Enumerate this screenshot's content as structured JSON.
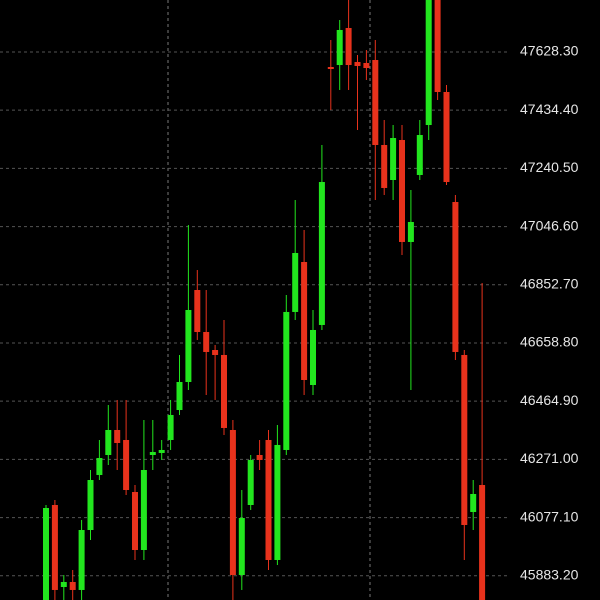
{
  "chart_data": {
    "type": "candlestick",
    "open": [
      45802.5,
      46119.0,
      45845.8,
      45862.5,
      45835.9,
      46035.7,
      46219.0,
      46285.6,
      46368.9,
      46335.6,
      46162.3,
      45969.1,
      46285.6,
      46292.3,
      46335.6,
      46435.5,
      46528.8,
      46835.3,
      46695.4,
      46635.4,
      46618.8,
      46368.9,
      45885.8,
      46119.0,
      46285.6,
      46335.6,
      45935.8,
      46302.3,
      46762.1,
      46928.6,
      46518.8,
      46718.8,
      47578.3,
      47584.9,
      47708.2,
      47594.9,
      47591.6,
      47601.6,
      47318.4,
      47201.8,
      47335.1,
      46995.3,
      47218.5,
      47385.0,
      47834.8,
      47495.0,
      47128.5,
      46618.8,
      46095.7,
      46185.6
    ],
    "high": [
      46119.0,
      46135.7,
      45885.8,
      45902.5,
      46069.1,
      46235.6,
      46335.6,
      46452.2,
      46468.9,
      46468.9,
      46185.6,
      46402.2,
      46402.2,
      46335.6,
      46468.9,
      46618.8,
      47051.9,
      46901.9,
      46835.3,
      46652.1,
      46735.4,
      46402.2,
      46169.0,
      46285.6,
      46335.6,
      46368.9,
      46385.6,
      46818.7,
      47135.2,
      47035.2,
      46768.7,
      47318.4,
      47668.2,
      47734.9,
      47801.5,
      47618.3,
      47634.9,
      47668.2,
      47401.7,
      47385.0,
      47385.0,
      47168.5,
      47401.7,
      47868.1,
      47868.1,
      47518.3,
      47151.8,
      46635.4,
      46202.3,
      46858.6
    ],
    "low": [
      45802.5,
      45802.5,
      45802.5,
      45802.5,
      45802.5,
      46002.4,
      46202.3,
      46252.3,
      46235.6,
      46152.3,
      45935.8,
      45935.8,
      46235.6,
      46269.0,
      46302.3,
      46418.9,
      46502.2,
      46668.8,
      46485.5,
      46468.9,
      46352.3,
      45802.5,
      45835.9,
      46102.4,
      46235.6,
      45902.5,
      45919.1,
      46285.6,
      46735.4,
      46485.5,
      46485.5,
      46702.1,
      47435.0,
      47501.7,
      47501.7,
      47368.4,
      47535.0,
      47135.2,
      47151.8,
      47135.2,
      46951.9,
      46502.2,
      47201.8,
      47335.1,
      47468.3,
      47185.1,
      46602.1,
      45935.8,
      46035.7,
      45735.9
    ],
    "close": [
      46109.0,
      45835.9,
      45862.5,
      45835.9,
      46035.7,
      46202.3,
      46275.6,
      46368.9,
      46325.6,
      46169.0,
      45969.1,
      46235.6,
      46295.6,
      46302.3,
      46418.9,
      46528.8,
      46768.7,
      46695.4,
      46628.8,
      46618.8,
      46375.6,
      45885.8,
      46075.7,
      46269.0,
      46269.0,
      45935.8,
      46319.0,
      46762.1,
      46958.6,
      46535.5,
      46702.1,
      47195.1,
      47571.6,
      47701.6,
      47584.9,
      47581.6,
      47574.9,
      47318.4,
      47175.2,
      47341.7,
      46995.3,
      47061.9,
      47351.7,
      47834.8,
      47495.0,
      47195.1,
      46628.8,
      46052.4,
      46155.7,
      45769.2
    ],
    "up_color": "#22e61e",
    "down_color": "#e8321c",
    "ylim": [
      45802.5,
      47801.5
    ],
    "yticks": [
      {
        "value": 45883.2,
        "label": "45883.20"
      },
      {
        "value": 46077.1,
        "label": "46077.10"
      },
      {
        "value": 46271.0,
        "label": "46271.00"
      },
      {
        "value": 46464.9,
        "label": "46464.90"
      },
      {
        "value": 46658.8,
        "label": "46658.80"
      },
      {
        "value": 46852.7,
        "label": "46852.70"
      },
      {
        "value": 47046.6,
        "label": "47046.60"
      },
      {
        "value": 47240.5,
        "label": "47240.50"
      },
      {
        "value": 47434.4,
        "label": "47434.40"
      },
      {
        "value": 47628.3,
        "label": "47628.30"
      }
    ],
    "grid": true
  }
}
